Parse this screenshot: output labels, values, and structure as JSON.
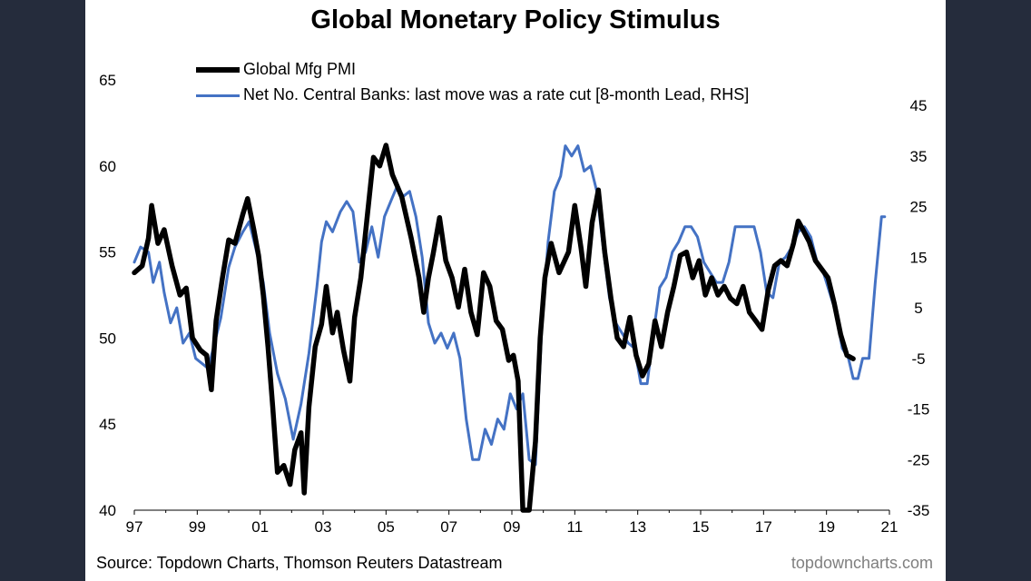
{
  "chart_data": {
    "type": "line",
    "title": "Global Monetary Policy Stimulus",
    "x_ticks": [
      "97",
      "99",
      "01",
      "03",
      "05",
      "07",
      "09",
      "11",
      "13",
      "15",
      "17",
      "19",
      "21"
    ],
    "x_range": [
      1997,
      2021
    ],
    "left_axis": {
      "ticks": [
        "65",
        "60",
        "55",
        "50",
        "45",
        "40"
      ],
      "ylim": [
        40,
        65
      ]
    },
    "right_axis": {
      "ticks": [
        "45",
        "35",
        "25",
        "15",
        "5",
        "-5",
        "-15",
        "-25",
        "-35"
      ],
      "ylim": [
        -35,
        50
      ]
    },
    "series": [
      {
        "name": "Global Mfg PMI",
        "axis": "left",
        "color": "#000000",
        "points": [
          [
            1997.0,
            53.8
          ],
          [
            1997.25,
            54.2
          ],
          [
            1997.45,
            55.8
          ],
          [
            1997.55,
            57.7
          ],
          [
            1997.75,
            55.5
          ],
          [
            1997.95,
            56.3
          ],
          [
            1998.2,
            54.2
          ],
          [
            1998.45,
            52.5
          ],
          [
            1998.65,
            52.9
          ],
          [
            1998.85,
            50.0
          ],
          [
            1999.1,
            49.3
          ],
          [
            1999.3,
            49.0
          ],
          [
            1999.45,
            47.0
          ],
          [
            1999.6,
            51.0
          ],
          [
            1999.8,
            53.5
          ],
          [
            2000.0,
            55.7
          ],
          [
            2000.2,
            55.5
          ],
          [
            2000.45,
            57.2
          ],
          [
            2000.6,
            58.1
          ],
          [
            2000.8,
            56.3
          ],
          [
            2000.95,
            54.8
          ],
          [
            2001.1,
            52.5
          ],
          [
            2001.25,
            49.5
          ],
          [
            2001.4,
            46.0
          ],
          [
            2001.55,
            42.2
          ],
          [
            2001.75,
            42.6
          ],
          [
            2001.95,
            41.5
          ],
          [
            2002.1,
            43.5
          ],
          [
            2002.3,
            44.5
          ],
          [
            2002.4,
            41.0
          ],
          [
            2002.55,
            46.0
          ],
          [
            2002.75,
            49.5
          ],
          [
            2002.95,
            50.8
          ],
          [
            2003.1,
            53.0
          ],
          [
            2003.3,
            50.3
          ],
          [
            2003.45,
            51.5
          ],
          [
            2003.65,
            49.3
          ],
          [
            2003.85,
            47.5
          ],
          [
            2004.0,
            51.2
          ],
          [
            2004.2,
            53.5
          ],
          [
            2004.4,
            57.0
          ],
          [
            2004.6,
            60.5
          ],
          [
            2004.8,
            60.0
          ],
          [
            2005.0,
            61.2
          ],
          [
            2005.2,
            59.5
          ],
          [
            2005.5,
            58.2
          ],
          [
            2005.8,
            55.8
          ],
          [
            2006.05,
            53.5
          ],
          [
            2006.2,
            51.5
          ],
          [
            2006.35,
            53.5
          ],
          [
            2006.5,
            54.9
          ],
          [
            2006.7,
            57.0
          ],
          [
            2006.9,
            54.5
          ],
          [
            2007.1,
            53.5
          ],
          [
            2007.3,
            51.8
          ],
          [
            2007.5,
            54.0
          ],
          [
            2007.7,
            51.5
          ],
          [
            2007.9,
            50.2
          ],
          [
            2008.1,
            53.8
          ],
          [
            2008.3,
            53.0
          ],
          [
            2008.5,
            51.0
          ],
          [
            2008.7,
            50.5
          ],
          [
            2008.9,
            48.7
          ],
          [
            2009.05,
            49.0
          ],
          [
            2009.2,
            47.5
          ],
          [
            2009.35,
            40.0
          ],
          [
            2009.55,
            40.0
          ],
          [
            2009.75,
            44.0
          ],
          [
            2009.9,
            50.0
          ],
          [
            2010.05,
            53.5
          ],
          [
            2010.25,
            55.5
          ],
          [
            2010.5,
            53.8
          ],
          [
            2010.8,
            55.0
          ],
          [
            2011.0,
            57.7
          ],
          [
            2011.2,
            55.2
          ],
          [
            2011.35,
            53.0
          ],
          [
            2011.55,
            56.7
          ],
          [
            2011.75,
            58.6
          ],
          [
            2011.95,
            55.0
          ],
          [
            2012.15,
            52.3
          ],
          [
            2012.35,
            50.0
          ],
          [
            2012.55,
            49.5
          ],
          [
            2012.75,
            51.2
          ],
          [
            2012.95,
            49.0
          ],
          [
            2013.15,
            47.8
          ],
          [
            2013.35,
            48.5
          ],
          [
            2013.55,
            51.0
          ],
          [
            2013.75,
            49.5
          ],
          [
            2013.95,
            51.5
          ],
          [
            2014.15,
            53.0
          ],
          [
            2014.35,
            54.8
          ],
          [
            2014.55,
            55.0
          ],
          [
            2014.75,
            53.5
          ],
          [
            2014.95,
            54.5
          ],
          [
            2015.15,
            52.5
          ],
          [
            2015.35,
            53.5
          ],
          [
            2015.55,
            52.5
          ],
          [
            2015.75,
            53.0
          ],
          [
            2015.95,
            52.3
          ],
          [
            2016.15,
            52.0
          ],
          [
            2016.35,
            53.0
          ],
          [
            2016.55,
            51.5
          ],
          [
            2016.75,
            51.0
          ],
          [
            2016.95,
            50.5
          ],
          [
            2017.15,
            52.8
          ],
          [
            2017.35,
            54.2
          ],
          [
            2017.55,
            54.5
          ],
          [
            2017.75,
            54.2
          ],
          [
            2017.95,
            55.5
          ],
          [
            2018.1,
            56.8
          ],
          [
            2018.25,
            56.3
          ],
          [
            2018.45,
            55.6
          ],
          [
            2018.65,
            54.5
          ],
          [
            2018.85,
            54.0
          ],
          [
            2019.05,
            53.5
          ],
          [
            2019.25,
            52.0
          ],
          [
            2019.45,
            50.2
          ],
          [
            2019.65,
            49.0
          ],
          [
            2019.85,
            48.8
          ]
        ]
      },
      {
        "name": "Net No. Central Banks: last move was a rate cut  [8-month Lead, RHS]",
        "axis": "right",
        "color": "#4472c4",
        "points": [
          [
            1997.0,
            14
          ],
          [
            1997.2,
            17
          ],
          [
            1997.45,
            16
          ],
          [
            1997.6,
            10
          ],
          [
            1997.8,
            14
          ],
          [
            1997.95,
            8
          ],
          [
            1998.15,
            2
          ],
          [
            1998.35,
            5
          ],
          [
            1998.55,
            -2
          ],
          [
            1998.75,
            0
          ],
          [
            1998.95,
            -5
          ],
          [
            1999.15,
            -6
          ],
          [
            1999.35,
            -7
          ],
          [
            1999.55,
            -2
          ],
          [
            1999.75,
            3
          ],
          [
            2000.0,
            13
          ],
          [
            2000.2,
            17
          ],
          [
            2000.45,
            20
          ],
          [
            2000.65,
            22
          ],
          [
            2000.85,
            17
          ],
          [
            2001.1,
            10
          ],
          [
            2001.3,
            0
          ],
          [
            2001.55,
            -8
          ],
          [
            2001.8,
            -13
          ],
          [
            2002.05,
            -21
          ],
          [
            2002.3,
            -14
          ],
          [
            2002.55,
            -4
          ],
          [
            2002.8,
            9
          ],
          [
            2002.95,
            18
          ],
          [
            2003.1,
            22
          ],
          [
            2003.3,
            20
          ],
          [
            2003.55,
            24
          ],
          [
            2003.75,
            26
          ],
          [
            2003.95,
            24
          ],
          [
            2004.15,
            14
          ],
          [
            2004.35,
            16
          ],
          [
            2004.55,
            21
          ],
          [
            2004.75,
            15
          ],
          [
            2004.95,
            23
          ],
          [
            2005.15,
            26
          ],
          [
            2005.35,
            29
          ],
          [
            2005.55,
            27
          ],
          [
            2005.75,
            28
          ],
          [
            2005.95,
            23
          ],
          [
            2006.15,
            15
          ],
          [
            2006.35,
            2
          ],
          [
            2006.55,
            -2
          ],
          [
            2006.75,
            0
          ],
          [
            2006.95,
            -3
          ],
          [
            2007.15,
            0
          ],
          [
            2007.35,
            -5
          ],
          [
            2007.55,
            -17
          ],
          [
            2007.75,
            -25
          ],
          [
            2007.95,
            -25
          ],
          [
            2008.15,
            -19
          ],
          [
            2008.35,
            -22
          ],
          [
            2008.55,
            -17
          ],
          [
            2008.75,
            -19
          ],
          [
            2008.95,
            -12
          ],
          [
            2009.15,
            -15
          ],
          [
            2009.35,
            -12
          ],
          [
            2009.55,
            -25
          ],
          [
            2009.75,
            -26
          ],
          [
            2009.95,
            1
          ],
          [
            2010.15,
            18
          ],
          [
            2010.35,
            28
          ],
          [
            2010.55,
            31
          ],
          [
            2010.7,
            37
          ],
          [
            2010.9,
            35
          ],
          [
            2011.1,
            37
          ],
          [
            2011.3,
            32
          ],
          [
            2011.5,
            33
          ],
          [
            2011.7,
            28
          ],
          [
            2011.9,
            17
          ],
          [
            2012.1,
            7
          ],
          [
            2012.3,
            2
          ],
          [
            2012.5,
            0
          ],
          [
            2012.7,
            -2
          ],
          [
            2012.9,
            -3
          ],
          [
            2013.1,
            -10
          ],
          [
            2013.3,
            -10
          ],
          [
            2013.5,
            0
          ],
          [
            2013.7,
            9
          ],
          [
            2013.9,
            11
          ],
          [
            2014.1,
            16
          ],
          [
            2014.3,
            18
          ],
          [
            2014.5,
            21
          ],
          [
            2014.7,
            21
          ],
          [
            2014.9,
            19
          ],
          [
            2015.1,
            14
          ],
          [
            2015.3,
            12
          ],
          [
            2015.5,
            10
          ],
          [
            2015.7,
            10
          ],
          [
            2015.9,
            14
          ],
          [
            2016.1,
            21
          ],
          [
            2016.3,
            21
          ],
          [
            2016.5,
            21
          ],
          [
            2016.7,
            21
          ],
          [
            2016.9,
            16
          ],
          [
            2017.1,
            8
          ],
          [
            2017.3,
            7
          ],
          [
            2017.5,
            14
          ],
          [
            2017.7,
            15
          ],
          [
            2017.9,
            17
          ],
          [
            2018.1,
            20
          ],
          [
            2018.3,
            21
          ],
          [
            2018.5,
            19
          ],
          [
            2018.7,
            14
          ],
          [
            2018.9,
            12
          ],
          [
            2019.1,
            8
          ],
          [
            2019.3,
            4
          ],
          [
            2019.5,
            -3
          ],
          [
            2019.7,
            -5
          ],
          [
            2019.85,
            -9
          ],
          [
            2020.0,
            -9
          ],
          [
            2020.15,
            -5
          ],
          [
            2020.35,
            -5
          ],
          [
            2020.55,
            10
          ],
          [
            2020.75,
            23
          ],
          [
            2020.85,
            23
          ]
        ]
      }
    ]
  },
  "legend": {
    "pmi_label": "Global Mfg PMI",
    "cb_label": "Net No. Central Banks: last move was a rate cut  [8-month Lead, RHS]"
  },
  "footer": {
    "source": "Source: Topdown Charts, Thomson Reuters Datastream",
    "brand": "topdowncharts.com"
  }
}
